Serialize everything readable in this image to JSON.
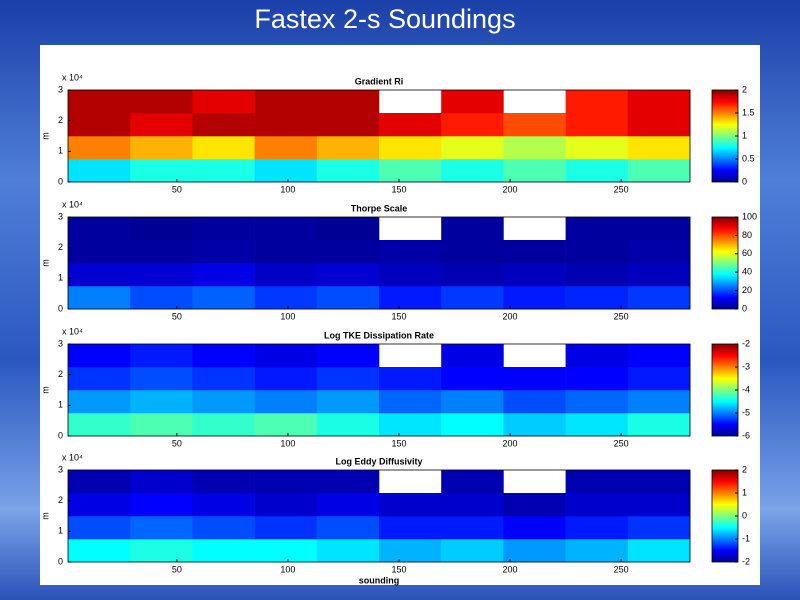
{
  "title": "Fastex 2-s Soundings",
  "chart_data": [
    {
      "type": "heatmap",
      "title": "Gradient Ri",
      "colormap": "jet",
      "x": [
        15,
        43,
        71,
        99,
        127,
        155,
        183,
        211,
        239,
        267
      ],
      "y": [
        0.375,
        1.125,
        1.875,
        2.625
      ],
      "z": [
        [
          0.7,
          0.8,
          0.8,
          0.7,
          0.8,
          0.9,
          0.8,
          0.9,
          0.8,
          0.9
        ],
        [
          1.5,
          1.4,
          1.3,
          1.5,
          1.4,
          1.3,
          1.2,
          1.1,
          1.2,
          1.3
        ],
        [
          1.9,
          1.8,
          1.9,
          1.9,
          1.9,
          1.8,
          1.7,
          1.6,
          1.7,
          1.8
        ],
        [
          1.9,
          1.9,
          1.8,
          1.9,
          1.9,
          null,
          1.8,
          null,
          1.7,
          1.8
        ]
      ],
      "xlim": [
        1,
        281
      ],
      "xticks": [
        50,
        100,
        150,
        200,
        250
      ],
      "ylim": [
        0,
        3
      ],
      "yticks": [
        0,
        1,
        2,
        3
      ],
      "y_label": "m",
      "y_multiplier": "x 10⁴",
      "clim": [
        0,
        2
      ],
      "cticks": [
        0,
        0.5,
        1,
        1.5,
        2
      ]
    },
    {
      "type": "heatmap",
      "title": "Thorpe Scale",
      "colormap": "jet",
      "x": [
        15,
        43,
        71,
        99,
        127,
        155,
        183,
        211,
        239,
        267
      ],
      "y": [
        0.375,
        1.125,
        1.875,
        2.625
      ],
      "z": [
        [
          25,
          20,
          22,
          18,
          20,
          15,
          18,
          15,
          16,
          18
        ],
        [
          8,
          8,
          10,
          7,
          8,
          6,
          5,
          6,
          5,
          6
        ],
        [
          3,
          3,
          4,
          3,
          3,
          4,
          3,
          3,
          3,
          4
        ],
        [
          3,
          2,
          3,
          3,
          2,
          null,
          3,
          null,
          3,
          3
        ]
      ],
      "xlim": [
        1,
        281
      ],
      "xticks": [
        50,
        100,
        150,
        200,
        250
      ],
      "ylim": [
        0,
        3
      ],
      "yticks": [
        0,
        1,
        2,
        3
      ],
      "y_label": "m",
      "y_multiplier": "x 10⁴",
      "clim": [
        0,
        100
      ],
      "cticks": [
        0,
        20,
        40,
        60,
        80,
        100
      ]
    },
    {
      "type": "heatmap",
      "title": "Log TKE Dissipation Rate",
      "colormap": "jet",
      "x": [
        15,
        43,
        71,
        99,
        127,
        155,
        183,
        211,
        239,
        267
      ],
      "y": [
        0.375,
        1.125,
        1.875,
        2.625
      ],
      "z": [
        [
          -4.3,
          -4.2,
          -4.3,
          -4.2,
          -4.4,
          -4.6,
          -4.5,
          -4.7,
          -4.6,
          -4.4
        ],
        [
          -4.9,
          -4.8,
          -4.9,
          -5.0,
          -4.9,
          -5.1,
          -5.0,
          -5.2,
          -5.1,
          -5.0
        ],
        [
          -5.3,
          -5.2,
          -5.3,
          -5.4,
          -5.3,
          -5.4,
          -5.5,
          -5.5,
          -5.5,
          -5.4
        ],
        [
          -5.5,
          -5.4,
          -5.5,
          -5.6,
          -5.5,
          null,
          -5.6,
          null,
          -5.6,
          -5.5
        ]
      ],
      "xlim": [
        1,
        281
      ],
      "xticks": [
        50,
        100,
        150,
        200,
        250
      ],
      "ylim": [
        0,
        3
      ],
      "yticks": [
        0,
        1,
        2,
        3
      ],
      "y_label": "m",
      "y_multiplier": "x 10⁴",
      "clim": [
        -6,
        -2
      ],
      "cticks": [
        -6,
        -5,
        -4,
        -3,
        -2
      ]
    },
    {
      "type": "heatmap",
      "title": "Log Eddy Diffusivity",
      "colormap": "jet",
      "x": [
        15,
        43,
        71,
        99,
        127,
        155,
        183,
        211,
        239,
        267
      ],
      "y": [
        0.375,
        1.125,
        1.875,
        2.625
      ],
      "z": [
        [
          -0.5,
          -0.4,
          -0.5,
          -0.5,
          -0.6,
          -0.8,
          -0.7,
          -0.9,
          -0.8,
          -0.6
        ],
        [
          -1.2,
          -1.1,
          -1.2,
          -1.3,
          -1.2,
          -1.4,
          -1.4,
          -1.5,
          -1.4,
          -1.3
        ],
        [
          -1.6,
          -1.5,
          -1.6,
          -1.7,
          -1.6,
          -1.7,
          -1.7,
          -1.8,
          -1.7,
          -1.7
        ],
        [
          -1.8,
          -1.7,
          -1.8,
          -1.8,
          -1.8,
          null,
          -1.8,
          null,
          -1.8,
          -1.8
        ]
      ],
      "xlim": [
        1,
        281
      ],
      "xticks": [
        50,
        100,
        150,
        200,
        250
      ],
      "ylim": [
        0,
        3
      ],
      "yticks": [
        0,
        1,
        2,
        3
      ],
      "y_label": "m",
      "y_multiplier": "x 10⁴",
      "clim": [
        -2,
        2
      ],
      "cticks": [
        -2,
        -1,
        0,
        1,
        2
      ],
      "x_label": "sounding"
    }
  ]
}
